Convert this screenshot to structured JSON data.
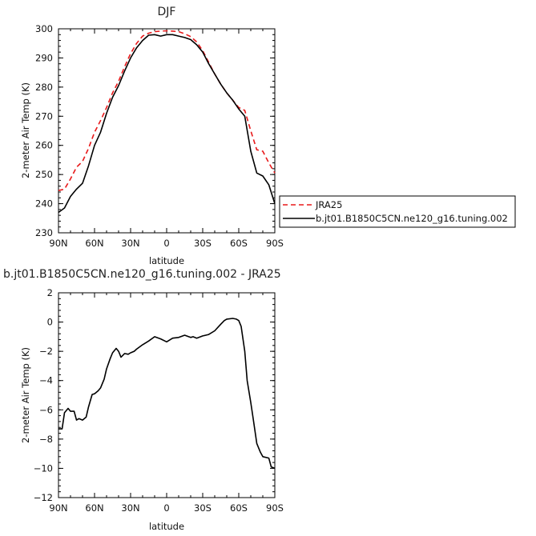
{
  "chart_data": [
    {
      "type": "line",
      "title": "DJF",
      "xlabel": "latitude",
      "ylabel": "2-meter Air Temp (K)",
      "xlim": [
        -90,
        90
      ],
      "ylim": [
        230,
        300
      ],
      "x_ticks": [
        -90,
        -60,
        -30,
        0,
        30,
        60,
        90
      ],
      "x_tick_labels": [
        "90N",
        "60N",
        "30N",
        "0",
        "30S",
        "60S",
        "90S"
      ],
      "y_ticks": [
        230,
        240,
        250,
        260,
        270,
        280,
        290,
        300
      ],
      "y_tick_labels": [
        "230",
        "240",
        "250",
        "260",
        "270",
        "280",
        "290",
        "300"
      ],
      "grid": false,
      "legend_position": "right",
      "series": [
        {
          "name": "JRA25",
          "color": "#e8191a",
          "dash": "dashed",
          "x": [
            -90,
            -85,
            -80,
            -75,
            -70,
            -65,
            -60,
            -55,
            -50,
            -45,
            -40,
            -35,
            -30,
            -25,
            -20,
            -15,
            -10,
            -5,
            0,
            5,
            10,
            15,
            20,
            25,
            30,
            35,
            40,
            45,
            50,
            55,
            60,
            65,
            70,
            75,
            80,
            85,
            90
          ],
          "values": [
            244.5,
            245.0,
            248.5,
            252.5,
            254.5,
            259.0,
            264.5,
            268.5,
            273.0,
            278.0,
            282.0,
            287.0,
            291.5,
            295.0,
            297.5,
            298.5,
            299.0,
            299.2,
            299.3,
            299.2,
            299.0,
            298.3,
            297.3,
            295.5,
            292.5,
            288.5,
            284.5,
            281.0,
            278.0,
            275.5,
            273.0,
            272.0,
            265.0,
            258.5,
            258.0,
            254.0,
            250.5
          ]
        },
        {
          "name": "b.jt01.B1850C5CN.ne120_g16.tuning.002",
          "color": "#000000",
          "dash": "solid",
          "x": [
            -90,
            -85,
            -80,
            -75,
            -70,
            -65,
            -60,
            -55,
            -50,
            -45,
            -40,
            -35,
            -30,
            -25,
            -20,
            -15,
            -10,
            -5,
            0,
            5,
            10,
            15,
            20,
            25,
            30,
            35,
            40,
            45,
            50,
            55,
            60,
            65,
            70,
            75,
            80,
            85,
            90
          ],
          "values": [
            237.0,
            238.5,
            242.5,
            245.0,
            247.0,
            253.0,
            260.0,
            264.5,
            271.0,
            276.5,
            280.5,
            285.5,
            290.0,
            293.5,
            296.0,
            297.8,
            298.0,
            297.5,
            298.0,
            298.0,
            297.5,
            297.0,
            296.3,
            294.5,
            292.0,
            288.0,
            284.5,
            281.0,
            278.0,
            275.5,
            272.5,
            270.0,
            258.0,
            250.5,
            249.5,
            246.5,
            240.0
          ]
        }
      ]
    },
    {
      "type": "line",
      "title": "b.jt01.B1850C5CN.ne120_g16.tuning.002 - JRA25",
      "xlabel": "latitude",
      "ylabel": "2-meter Air Temp (K)",
      "xlim": [
        -90,
        90
      ],
      "ylim": [
        -12,
        2
      ],
      "x_ticks": [
        -90,
        -60,
        -30,
        0,
        30,
        60,
        90
      ],
      "x_tick_labels": [
        "90N",
        "60N",
        "30N",
        "0",
        "30S",
        "60S",
        "90S"
      ],
      "y_ticks": [
        -12,
        -10,
        -8,
        -6,
        -4,
        -2,
        0,
        2
      ],
      "y_tick_labels": [
        "−12",
        "−10",
        "−8",
        "−6",
        "−4",
        "−2",
        "0",
        "2"
      ],
      "grid": false,
      "series": [
        {
          "color": "#000000",
          "dash": "solid",
          "x": [
            -90,
            -87,
            -85,
            -82,
            -80,
            -77,
            -75,
            -73,
            -70,
            -67,
            -65,
            -62,
            -60,
            -57,
            -55,
            -52,
            -50,
            -47,
            -45,
            -42,
            -40,
            -38,
            -35,
            -32,
            -30,
            -27,
            -25,
            -20,
            -15,
            -10,
            -5,
            0,
            5,
            10,
            15,
            20,
            22,
            25,
            30,
            35,
            40,
            45,
            48,
            50,
            55,
            58,
            60,
            62,
            65,
            67,
            70,
            72,
            75,
            78,
            80,
            85,
            87,
            90
          ],
          "values": [
            -7.3,
            -7.3,
            -6.2,
            -5.9,
            -6.1,
            -6.1,
            -6.7,
            -6.6,
            -6.7,
            -6.5,
            -5.8,
            -4.95,
            -4.9,
            -4.7,
            -4.5,
            -3.9,
            -3.2,
            -2.5,
            -2.1,
            -1.8,
            -2.0,
            -2.4,
            -2.15,
            -2.2,
            -2.1,
            -2.0,
            -1.85,
            -1.55,
            -1.3,
            -1.0,
            -1.15,
            -1.35,
            -1.1,
            -1.05,
            -0.9,
            -1.05,
            -1.0,
            -1.1,
            -0.95,
            -0.85,
            -0.6,
            -0.15,
            0.1,
            0.2,
            0.25,
            0.2,
            0.1,
            -0.3,
            -2.0,
            -4.0,
            -5.5,
            -6.6,
            -8.3,
            -8.9,
            -9.2,
            -9.3,
            -9.9,
            -10.0
          ]
        }
      ]
    }
  ]
}
